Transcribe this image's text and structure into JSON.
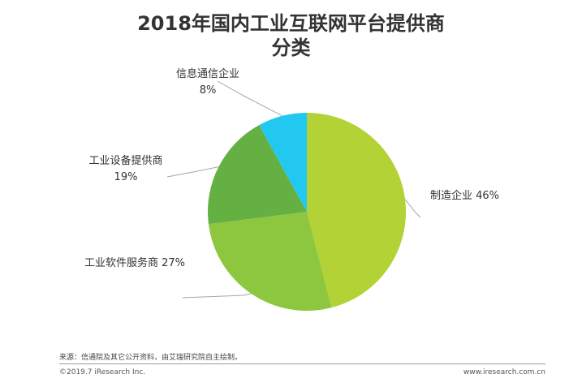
{
  "chart_data": {
    "type": "pie",
    "title_lines": [
      "2018年国内工业互联网平台提供商",
      "分类"
    ],
    "slices": [
      {
        "label": "制造企业",
        "value": 46,
        "value_text": "46%",
        "color": "#b2d235"
      },
      {
        "label": "工业软件服务商",
        "value": 27,
        "value_text": "27%",
        "color": "#8dc63f"
      },
      {
        "label": "工业设备提供商",
        "value": 19,
        "value_text": "19%",
        "color": "#65b042"
      },
      {
        "label": "信息通信企业",
        "value": 8,
        "value_text": "8%",
        "color": "#22c8f0"
      }
    ]
  },
  "footer": {
    "source": "来源：信通院及其它公开资料，由艾瑞研究院自主绘制。",
    "copyright": "©2019.7 iResearch Inc.",
    "website": "www.iresearch.com.cn"
  }
}
